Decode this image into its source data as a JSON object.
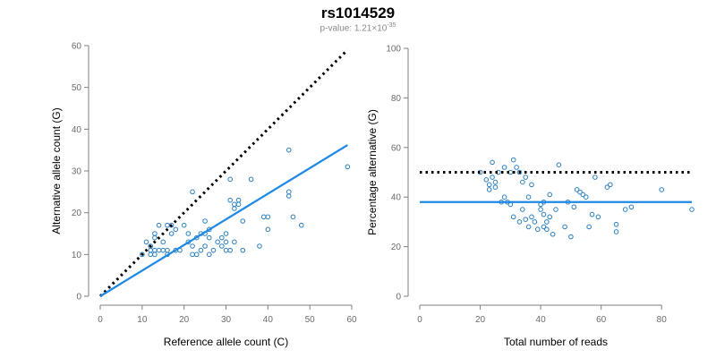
{
  "figure": {
    "title": "rs1014529",
    "pvalue_prefix": "p-value: 1.21×10",
    "pvalue_exponent": "-35"
  },
  "colors": {
    "points": "#2b7fc1",
    "fit": "#1e88e5",
    "reference": "#000000",
    "axis": "#7f7f7f"
  },
  "chart_data": [
    {
      "type": "scatter",
      "xlabel": "Reference allele count (C)",
      "ylabel": "Alternative allele count (G)",
      "xlim": [
        0,
        60
      ],
      "ylim": [
        0,
        60
      ],
      "xticks": [
        0,
        10,
        20,
        30,
        40,
        50,
        60
      ],
      "yticks": [
        0,
        10,
        20,
        30,
        40,
        50,
        60
      ],
      "points": [
        [
          10,
          10
        ],
        [
          11,
          13
        ],
        [
          12,
          10
        ],
        [
          12,
          11
        ],
        [
          12,
          12
        ],
        [
          13,
          10
        ],
        [
          13,
          11
        ],
        [
          13,
          14
        ],
        [
          13,
          15
        ],
        [
          14,
          11
        ],
        [
          14,
          17
        ],
        [
          15,
          11
        ],
        [
          15,
          13
        ],
        [
          16,
          10
        ],
        [
          16,
          11
        ],
        [
          16,
          17
        ],
        [
          17,
          15
        ],
        [
          17,
          17
        ],
        [
          18,
          11
        ],
        [
          18,
          16
        ],
        [
          19,
          11
        ],
        [
          20,
          17
        ],
        [
          21,
          13
        ],
        [
          21,
          15
        ],
        [
          22,
          10
        ],
        [
          22,
          12
        ],
        [
          22,
          25
        ],
        [
          23,
          10
        ],
        [
          23,
          14
        ],
        [
          24,
          11
        ],
        [
          24,
          15
        ],
        [
          25,
          12
        ],
        [
          25,
          15
        ],
        [
          25,
          18
        ],
        [
          26,
          10
        ],
        [
          26,
          14
        ],
        [
          26,
          16
        ],
        [
          27,
          11
        ],
        [
          28,
          13
        ],
        [
          29,
          12
        ],
        [
          29,
          14
        ],
        [
          30,
          11
        ],
        [
          30,
          13
        ],
        [
          30,
          15
        ],
        [
          31,
          11
        ],
        [
          31,
          23
        ],
        [
          31,
          28
        ],
        [
          32,
          21
        ],
        [
          32,
          22
        ],
        [
          32,
          13
        ],
        [
          33,
          22
        ],
        [
          33,
          23
        ],
        [
          34,
          18
        ],
        [
          34,
          11
        ],
        [
          36,
          28
        ],
        [
          38,
          12
        ],
        [
          39,
          19
        ],
        [
          40,
          16
        ],
        [
          40,
          19
        ],
        [
          45,
          24
        ],
        [
          45,
          25
        ],
        [
          45,
          35
        ],
        [
          46,
          19
        ],
        [
          48,
          17
        ],
        [
          59,
          31
        ]
      ],
      "fit_line": {
        "x": [
          0,
          59
        ],
        "y": [
          0,
          36.2
        ]
      },
      "reference_line": {
        "x": [
          0,
          59
        ],
        "y": [
          0,
          59
        ]
      }
    },
    {
      "type": "scatter",
      "xlabel": "Total number of reads",
      "ylabel": "Percentage alternative (G)",
      "xlim": [
        0,
        90
      ],
      "ylim": [
        0,
        100
      ],
      "xticks": [
        0,
        20,
        40,
        60,
        80
      ],
      "yticks": [
        0,
        20,
        40,
        60,
        80,
        100
      ],
      "points": [
        [
          20,
          50
        ],
        [
          22,
          47
        ],
        [
          23,
          45
        ],
        [
          23,
          43
        ],
        [
          24,
          54
        ],
        [
          24,
          48
        ],
        [
          25,
          46
        ],
        [
          25,
          44
        ],
        [
          26,
          50
        ],
        [
          27,
          38
        ],
        [
          28,
          40
        ],
        [
          28,
          52
        ],
        [
          29,
          38
        ],
        [
          30,
          37
        ],
        [
          30,
          50
        ],
        [
          31,
          55
        ],
        [
          31,
          32
        ],
        [
          32,
          52
        ],
        [
          33,
          30
        ],
        [
          33,
          50
        ],
        [
          34,
          35
        ],
        [
          34,
          46
        ],
        [
          35,
          48
        ],
        [
          35,
          31
        ],
        [
          36,
          28
        ],
        [
          36,
          40
        ],
        [
          37,
          45
        ],
        [
          37,
          32
        ],
        [
          38,
          30
        ],
        [
          39,
          27
        ],
        [
          40,
          35
        ],
        [
          40,
          37
        ],
        [
          41,
          28
        ],
        [
          41,
          33
        ],
        [
          41,
          38
        ],
        [
          42,
          30
        ],
        [
          42,
          27
        ],
        [
          43,
          41
        ],
        [
          43,
          32
        ],
        [
          44,
          25
        ],
        [
          45,
          35
        ],
        [
          46,
          53
        ],
        [
          48,
          28
        ],
        [
          49,
          38
        ],
        [
          50,
          24
        ],
        [
          51,
          36
        ],
        [
          52,
          43
        ],
        [
          53,
          42
        ],
        [
          54,
          41
        ],
        [
          55,
          40
        ],
        [
          56,
          28
        ],
        [
          57,
          33
        ],
        [
          58,
          48
        ],
        [
          59,
          32
        ],
        [
          62,
          44
        ],
        [
          63,
          45
        ],
        [
          65,
          26
        ],
        [
          65,
          29
        ],
        [
          68,
          35
        ],
        [
          70,
          36
        ],
        [
          80,
          43
        ],
        [
          90,
          35
        ]
      ],
      "fit_line": {
        "x": [
          0,
          90
        ],
        "y": [
          38,
          38
        ]
      },
      "reference_line": {
        "x": [
          0,
          90
        ],
        "y": [
          50,
          50
        ]
      }
    }
  ]
}
